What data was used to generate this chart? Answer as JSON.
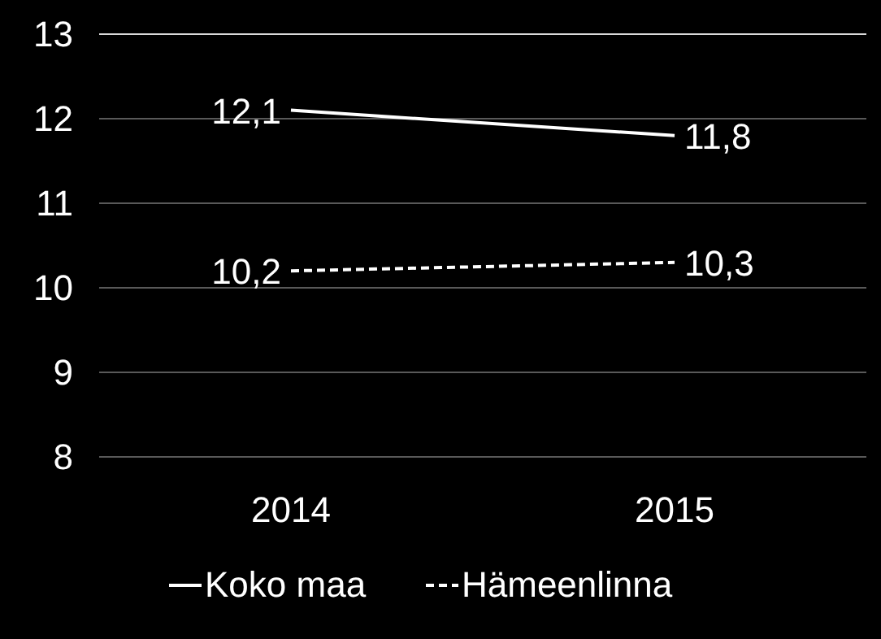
{
  "chart_data": {
    "type": "line",
    "categories": [
      "2014",
      "2015"
    ],
    "series": [
      {
        "name": "Koko maa",
        "color": "#ffffff",
        "line_style": "solid",
        "values": [
          12.1,
          11.8
        ],
        "value_labels": [
          "12,1",
          "11,8"
        ]
      },
      {
        "name": "Hämeenlinna",
        "color": "#ffffff",
        "line_style": "dashed",
        "values": [
          10.2,
          10.3
        ],
        "value_labels": [
          "10,2",
          "10,3"
        ]
      }
    ],
    "ylim": [
      8,
      13
    ],
    "yticks": [
      8,
      9,
      10,
      11,
      12,
      13
    ],
    "grid": "y",
    "legend": "bottom",
    "marker": "none"
  }
}
